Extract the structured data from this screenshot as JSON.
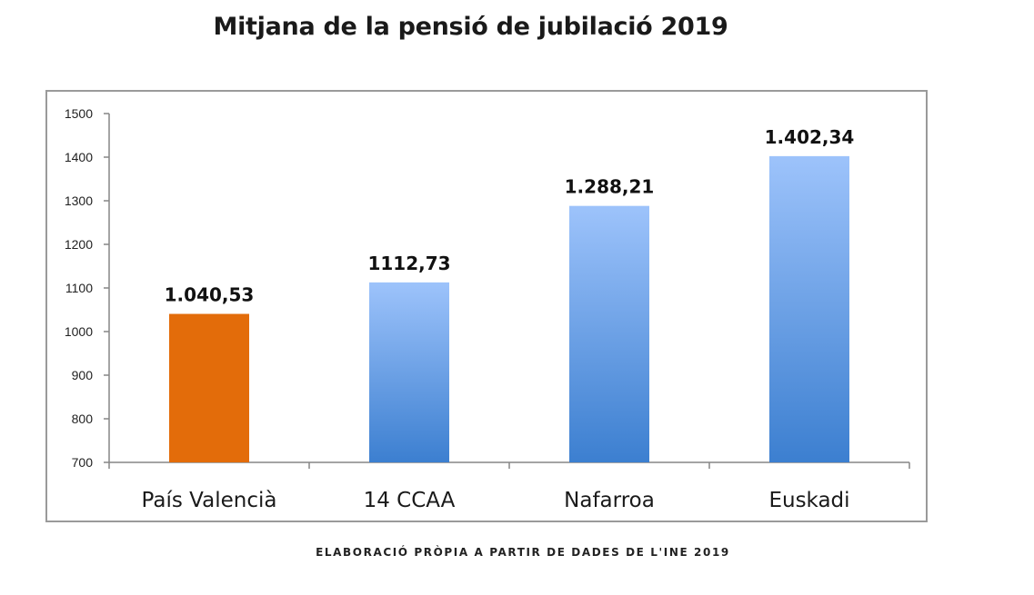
{
  "title": "Mitjana de la pensió de jubilació 2019",
  "caption": "ELABORACIÓ PRÒPIA A PARTIR DE DADES DE L'INE 2019",
  "chart_data": {
    "type": "bar",
    "title": "Mitjana de la pensió de jubilació 2019",
    "categories": [
      "País Valencià",
      "14 CCAA",
      "Nafarroa",
      "Euskadi"
    ],
    "values": [
      1040.53,
      1112.73,
      1288.21,
      1402.34
    ],
    "data_labels": [
      "1.040,53",
      "1112,73",
      "1.288,21",
      "1.402,34"
    ],
    "ylim": [
      700,
      1500
    ],
    "yticks": [
      700,
      800,
      900,
      1000,
      1100,
      1200,
      1300,
      1400,
      1500
    ],
    "xlabel": "",
    "ylabel": "",
    "grid": false,
    "legend": "none",
    "colors": {
      "highlight": "#e36c0a",
      "bar_top": "#9dc3fb",
      "bar_bottom": "#3c7fd0"
    },
    "highlight_index": 0
  }
}
